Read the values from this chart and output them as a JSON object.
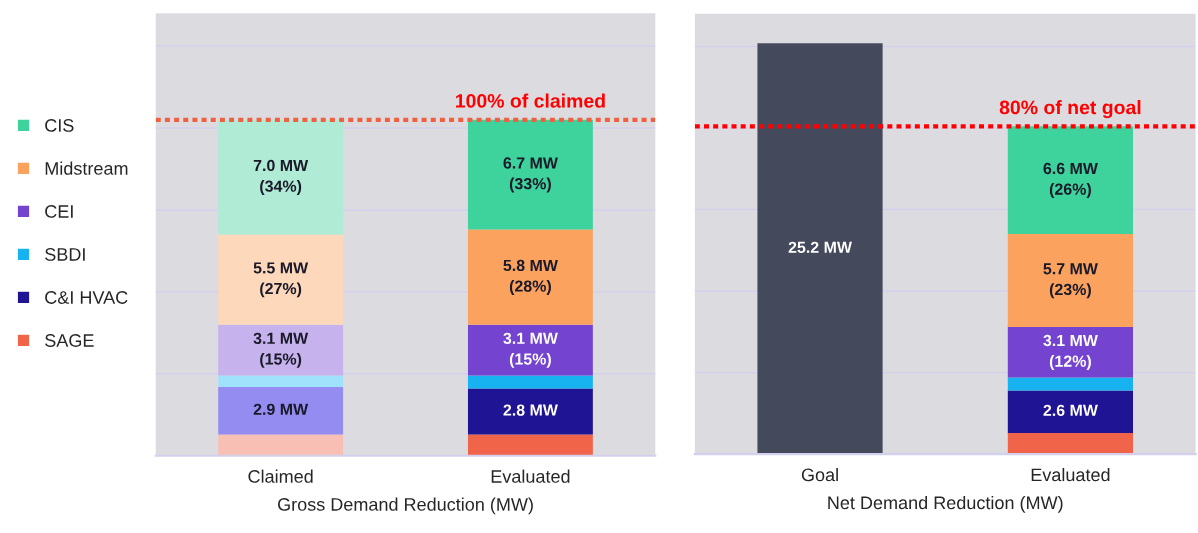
{
  "chart_data": [
    {
      "type": "bar",
      "stacked": true,
      "xlabel": "Gross Demand Reduction (MW)",
      "categories": [
        "Claimed",
        "Evaluated"
      ],
      "series": [
        {
          "name": "SAGE",
          "color": "#f0644a",
          "colors": [
            "#f8c0b5",
            "#f0644a"
          ],
          "values": [
            1.3,
            1.3
          ],
          "value_labels": [
            null,
            null
          ]
        },
        {
          "name": "C&I HVAC",
          "color": "#1f1594",
          "colors": [
            "#948cf0",
            "#1f1594"
          ],
          "values": [
            2.9,
            2.8
          ],
          "value_labels": [
            "2.9 MW",
            "2.8 MW"
          ]
        },
        {
          "name": "SBDI",
          "color": "#17b3f0",
          "colors": [
            "#a0e2fb",
            "#17b3f0"
          ],
          "values": [
            0.7,
            0.8
          ],
          "value_labels": [
            null,
            null
          ]
        },
        {
          "name": "CEI",
          "color": "#7443cf",
          "colors": [
            "#c6b2ec",
            "#7443cf"
          ],
          "values": [
            3.1,
            3.1
          ],
          "value_labels": [
            "3.1 MW\n(15%)",
            "3.1 MW\n(15%)"
          ]
        },
        {
          "name": "Midstream",
          "color": "#fba35e",
          "colors": [
            "#fdd8bb",
            "#fba35e"
          ],
          "values": [
            5.5,
            5.8
          ],
          "value_labels": [
            "5.5 MW\n(27%)",
            "5.8 MW\n(28%)"
          ]
        },
        {
          "name": "CIS",
          "color": "#3ed39c",
          "colors": [
            "#b0ebd5",
            "#3ed39c"
          ],
          "values": [
            7.0,
            6.7
          ],
          "value_labels": [
            "7.0 MW\n(34%)",
            "6.7 MW\n(33%)"
          ]
        }
      ],
      "ylim": [
        0,
        27
      ],
      "yticks": [
        {
          "value": 0,
          "label": null
        },
        {
          "value": 5,
          "label": null
        },
        {
          "value": 10,
          "label": null
        },
        {
          "value": 15,
          "label": null
        },
        {
          "value": 20,
          "label": null
        },
        {
          "value": 25,
          "label": null
        }
      ],
      "ref_lines": [
        {
          "axis": "y",
          "value": 20.5,
          "label": "100% of claimed",
          "color": "#f06040",
          "line_style": "dotted"
        }
      ],
      "grid": "y",
      "legend": "left",
      "tick_labels": "x"
    },
    {
      "type": "bar",
      "stacked": true,
      "xlabel": "Net Demand Reduction (MW)",
      "categories": [
        "Goal",
        "Evaluated"
      ],
      "series": [
        {
          "color": "#444a5c",
          "values": [
            25.2,
            null
          ],
          "value_labels": [
            "25.2 MW",
            null
          ]
        },
        {
          "color": "#f0644a",
          "values": [
            null,
            1.3
          ],
          "value_labels": [
            null,
            null
          ]
        },
        {
          "color": "#1f1594",
          "values": [
            null,
            2.6
          ],
          "value_labels": [
            null,
            "2.6 MW"
          ]
        },
        {
          "color": "#17b3f0",
          "values": [
            null,
            0.8
          ],
          "value_labels": [
            null,
            null
          ]
        },
        {
          "color": "#7443cf",
          "values": [
            null,
            3.1
          ],
          "value_labels": [
            null,
            "3.1 MW\n(12%)"
          ]
        },
        {
          "color": "#fba35e",
          "values": [
            null,
            5.7
          ],
          "value_labels": [
            null,
            "5.7 MW\n(23%)"
          ]
        },
        {
          "color": "#3ed39c",
          "values": [
            null,
            6.6
          ],
          "value_labels": [
            null,
            "6.6 MW\n(26%)"
          ]
        }
      ],
      "ylim": [
        0,
        27
      ],
      "yticks": [
        {
          "value": 0,
          "label": null
        },
        {
          "value": 5,
          "label": null
        },
        {
          "value": 10,
          "label": null
        },
        {
          "value": 15,
          "label": null
        },
        {
          "value": 20,
          "label": null
        },
        {
          "value": 25,
          "label": null
        }
      ],
      "ref_lines": [
        {
          "axis": "y",
          "value": 20.1,
          "label": "80% of net goal",
          "color": "#ff0000",
          "line_style": "dotted"
        }
      ],
      "grid": "y",
      "legend": false,
      "tick_labels": "x"
    }
  ]
}
